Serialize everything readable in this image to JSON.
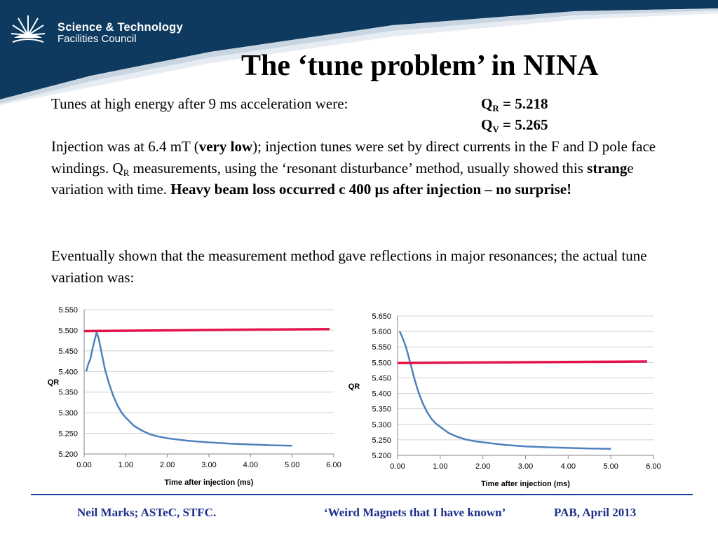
{
  "header": {
    "org_line1": "Science & Technology",
    "org_line2": "Facilities Council",
    "banner_color": "#0e3a5f"
  },
  "title": "The ‘tune problem’ in NINA",
  "tunes": {
    "intro": "Tunes at high energy after 9 ms acceleration were:",
    "qr": {
      "symbol": "Q",
      "subscript": "R",
      "text": " = 5.218"
    },
    "qv": {
      "symbol": "Q",
      "subscript": "V",
      "text": " = 5.265"
    }
  },
  "paragraph_injection": {
    "t1": "Injection was at 6.4 mT (",
    "b1": "very low",
    "t2": "); injection tunes were set by direct currents in the F and D pole face windings. Q",
    "sub": "R",
    "t3": "  measurements, using the ‘resonant disturbance’ method, usually showed this ",
    "b2": "strang",
    "t4": "e variation with time. ",
    "b3": "Heavy beam loss occurred c 400 µs after injection – no surprise!"
  },
  "paragraph_eventually": "Eventually shown that the measurement method gave reflections in major resonances; the actual tune variation was:",
  "chart_data": [
    {
      "type": "line",
      "xlabel": "Time after injection (ms)",
      "ylabel": "QR",
      "xlim": [
        0,
        6
      ],
      "ylim": [
        5.2,
        5.55
      ],
      "xticks": [
        "0.00",
        "1.00",
        "2.00",
        "3.00",
        "4.00",
        "5.00",
        "6.00"
      ],
      "yticks": [
        "5.200",
        "5.250",
        "5.300",
        "5.350",
        "5.400",
        "5.450",
        "5.500",
        "5.550"
      ],
      "grid": "horizontal",
      "series": [
        {
          "color": "#4f81bd",
          "x": [
            0.05,
            0.1,
            0.15,
            0.2,
            0.25,
            0.3,
            0.35,
            0.4,
            0.5,
            0.6,
            0.7,
            0.8,
            0.9,
            1.0,
            1.2,
            1.4,
            1.6,
            1.8,
            2.0,
            2.5,
            3.0,
            3.5,
            4.0,
            4.5,
            5.0
          ],
          "y": [
            5.4,
            5.418,
            5.43,
            5.455,
            5.475,
            5.495,
            5.48,
            5.455,
            5.405,
            5.37,
            5.341,
            5.318,
            5.3,
            5.288,
            5.268,
            5.256,
            5.247,
            5.242,
            5.238,
            5.232,
            5.228,
            5.225,
            5.223,
            5.221,
            5.22
          ]
        },
        {
          "color": "#e3134b",
          "x": [
            0,
            5.9
          ],
          "y": [
            5.498,
            5.503
          ]
        }
      ]
    },
    {
      "type": "line",
      "xlabel": "Time after injection (ms)",
      "ylabel": "QR",
      "xlim": [
        0,
        6
      ],
      "ylim": [
        5.2,
        5.65
      ],
      "xticks": [
        "0.00",
        "1.00",
        "2.00",
        "3.00",
        "4.00",
        "5.00",
        "6.00"
      ],
      "yticks": [
        "5.200",
        "5.250",
        "5.300",
        "5.350",
        "5.400",
        "5.450",
        "5.500",
        "5.550",
        "5.600",
        "5.650"
      ],
      "grid": "horizontal",
      "series": [
        {
          "color": "#4f81bd",
          "x": [
            0.05,
            0.1,
            0.15,
            0.2,
            0.3,
            0.4,
            0.5,
            0.6,
            0.7,
            0.8,
            0.9,
            1.0,
            1.2,
            1.4,
            1.6,
            1.8,
            2.0,
            2.5,
            3.0,
            3.5,
            4.0,
            4.5,
            5.0
          ],
          "y": [
            5.6,
            5.585,
            5.568,
            5.548,
            5.497,
            5.445,
            5.4,
            5.365,
            5.338,
            5.317,
            5.302,
            5.292,
            5.272,
            5.26,
            5.251,
            5.246,
            5.242,
            5.234,
            5.229,
            5.226,
            5.224,
            5.222,
            5.221
          ]
        },
        {
          "color": "#e3134b",
          "x": [
            0,
            5.85
          ],
          "y": [
            5.498,
            5.503
          ]
        }
      ]
    }
  ],
  "footer": {
    "author": "Neil Marks; ASTeC, STFC.",
    "talk": "‘Weird Magnets that I have known’",
    "conference": "PAB, April 2013",
    "color": "#1b2e8a"
  }
}
